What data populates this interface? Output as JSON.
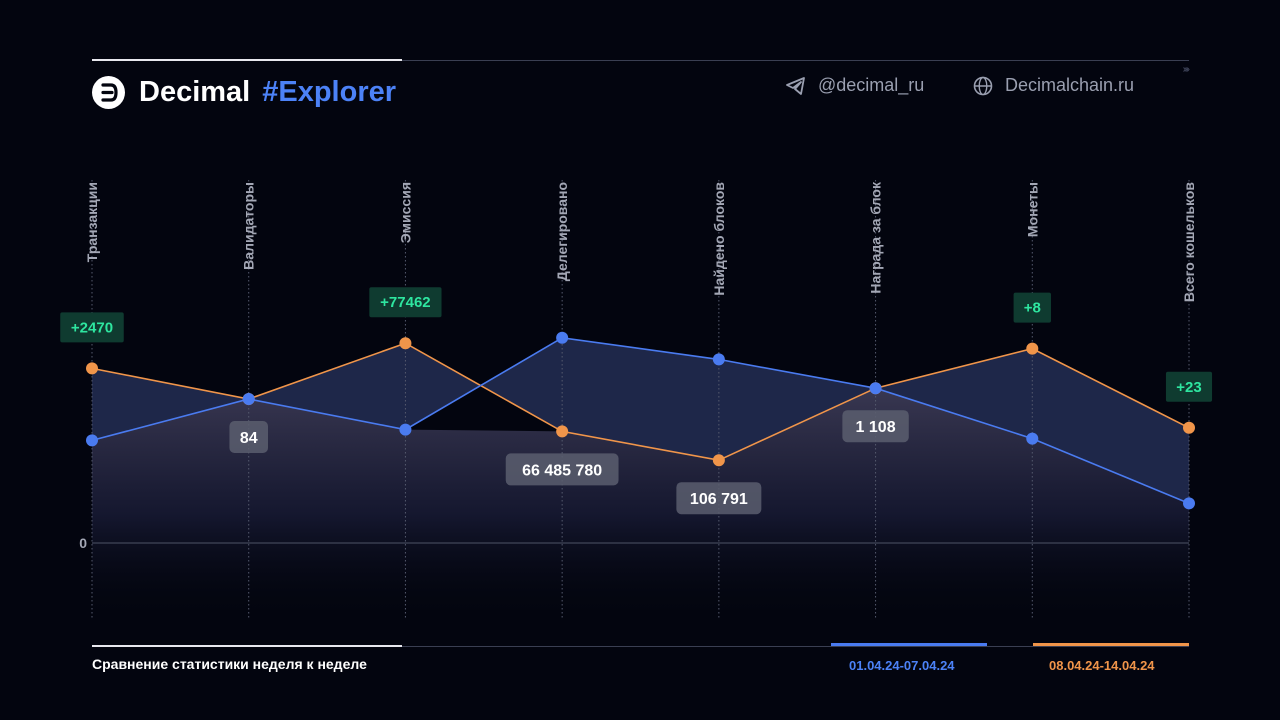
{
  "brand": {
    "name": "Decimal",
    "tag": "#Explorer"
  },
  "social": {
    "telegram": "@decimal_ru",
    "website": "Decimalchain.ru"
  },
  "footer": {
    "title": "Сравнение статистики неделя к неделе",
    "legend": [
      {
        "label": "01.04.24-07.04.24",
        "color": "#4c82f7"
      },
      {
        "label": "08.04.24-14.04.24",
        "color": "#f0954a"
      }
    ]
  },
  "chart_data": {
    "type": "area",
    "categories": [
      "Транзакции",
      "Валидаторы",
      "Эмиссия",
      "Делегировано",
      "Найдено блоков",
      "Награда за блок",
      "Монеты",
      "Всего кошельков"
    ],
    "y_tick_labels": [
      "0"
    ],
    "grid": true,
    "series": [
      {
        "name": "01.04.24-07.04.24",
        "color": "#4a7bf0",
        "relative_values": [
          0.57,
          0.8,
          0.63,
          1.14,
          1.02,
          0.86,
          0.58,
          0.22
        ]
      },
      {
        "name": "08.04.24-14.04.24",
        "color": "#f0954a",
        "relative_values": [
          0.97,
          0.8,
          1.11,
          0.62,
          0.46,
          0.86,
          1.08,
          0.64
        ]
      }
    ],
    "value_labels": [
      "",
      "84",
      "",
      "66 485 780",
      "106 791",
      "1 108",
      "",
      ""
    ],
    "change_labels": [
      "+2470",
      "",
      "+77462",
      "",
      "",
      "",
      "+8",
      "+23"
    ]
  }
}
